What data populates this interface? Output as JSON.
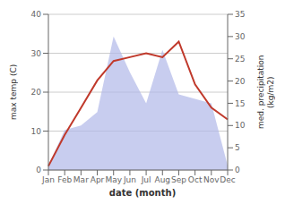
{
  "chart_data": {
    "type": "line",
    "xlabel": "date (month)",
    "ylabel": "max temp (C)",
    "y2label": "med. precipitation\n(kg/m2)",
    "categories": [
      "Jan",
      "Feb",
      "Mar",
      "Apr",
      "May",
      "Jun",
      "Jul",
      "Aug",
      "Sep",
      "Oct",
      "Nov",
      "Dec"
    ],
    "series": [
      {
        "type": "area",
        "axis": "y2",
        "color": "#b0b8e8",
        "values": [
          1,
          9,
          10,
          13,
          30,
          22,
          15,
          27,
          17,
          16,
          15,
          1
        ]
      },
      {
        "type": "line",
        "color": "#c0392b",
        "values": [
          1,
          9,
          16,
          23,
          28,
          29,
          30,
          29,
          33,
          22,
          16,
          13
        ]
      }
    ],
    "ylim": [
      0,
      40
    ],
    "yticks": [
      0,
      10,
      20,
      30,
      40
    ],
    "y2lim": [
      0,
      35
    ],
    "y2ticks": [
      0,
      5,
      10,
      15,
      20,
      25,
      30,
      35
    ],
    "grid": true
  }
}
